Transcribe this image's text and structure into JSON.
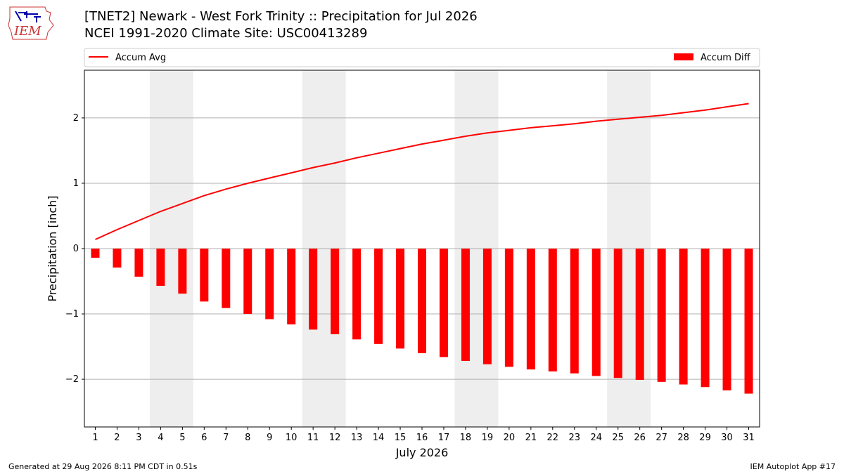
{
  "header": {
    "title_line1": "[TNET2] Newark - West Fork Trinity :: Precipitation for Jul 2026",
    "title_line2": "NCEI 1991-2020 Climate Site: USC00413289",
    "logo_text": "IEM"
  },
  "footer": {
    "generated": "Generated at 29 Aug 2026 8:11 PM CDT in 0.51s",
    "app": "IEM Autoplot App #17"
  },
  "colors": {
    "series": "#ff0000",
    "weekend_band": "#eeeeee",
    "grid": "#b0b0b0"
  },
  "chart_data": {
    "type": "bar",
    "xlabel": "July 2026",
    "ylabel": "Precipitation [inch]",
    "x": [
      1,
      2,
      3,
      4,
      5,
      6,
      7,
      8,
      9,
      10,
      11,
      12,
      13,
      14,
      15,
      16,
      17,
      18,
      19,
      20,
      21,
      22,
      23,
      24,
      25,
      26,
      27,
      28,
      29,
      30,
      31
    ],
    "xlim": [
      0.5,
      31.5
    ],
    "ylim": [
      -2.73,
      2.73
    ],
    "yticks": [
      -2,
      -1,
      0,
      1,
      2
    ],
    "ytick_labels": [
      "−2",
      "−1",
      "0",
      "1",
      "2"
    ],
    "grid": true,
    "legend_placement": "top",
    "weekend_shading": [
      [
        3.5,
        5.5
      ],
      [
        10.5,
        12.5
      ],
      [
        17.5,
        19.5
      ],
      [
        24.5,
        26.5
      ]
    ],
    "series": [
      {
        "name": "Accum Avg",
        "type": "line",
        "values": [
          0.14,
          0.29,
          0.43,
          0.57,
          0.69,
          0.81,
          0.91,
          1.0,
          1.08,
          1.16,
          1.24,
          1.31,
          1.39,
          1.46,
          1.53,
          1.6,
          1.66,
          1.72,
          1.77,
          1.81,
          1.85,
          1.88,
          1.91,
          1.95,
          1.98,
          2.01,
          2.04,
          2.08,
          2.12,
          2.17,
          2.22
        ]
      },
      {
        "name": "Accum Diff",
        "type": "bar",
        "values": [
          -0.14,
          -0.29,
          -0.43,
          -0.57,
          -0.69,
          -0.81,
          -0.91,
          -1.0,
          -1.08,
          -1.16,
          -1.24,
          -1.31,
          -1.39,
          -1.46,
          -1.53,
          -1.6,
          -1.66,
          -1.72,
          -1.77,
          -1.81,
          -1.85,
          -1.88,
          -1.91,
          -1.95,
          -1.98,
          -2.01,
          -2.04,
          -2.08,
          -2.12,
          -2.17,
          -2.22
        ]
      }
    ]
  }
}
